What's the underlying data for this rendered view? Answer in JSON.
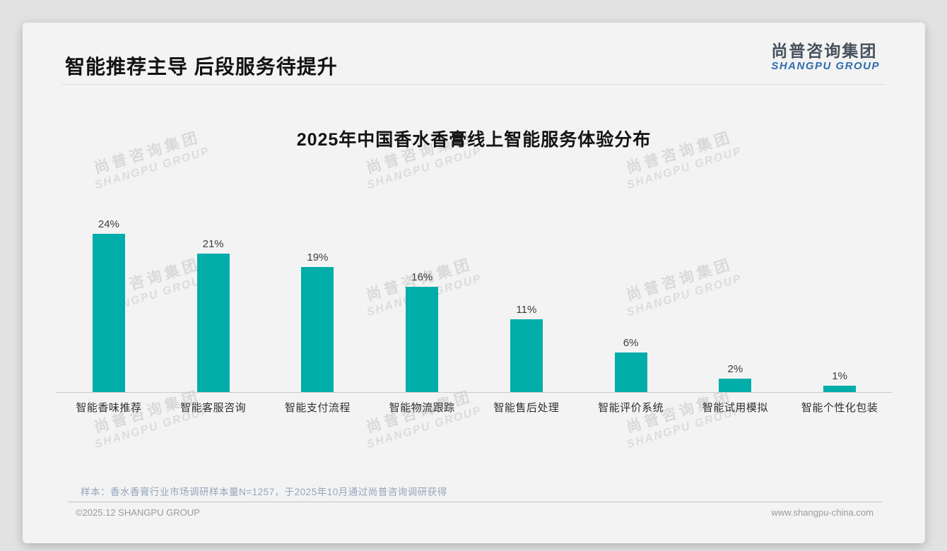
{
  "page": {
    "title": "智能推荐主导 后段服务待提升",
    "logo": {
      "cn": "尚普咨询集团",
      "en": "SHANGPU GROUP"
    },
    "watermark": {
      "cn": "尚普咨询集团",
      "en": "SHANGPU GROUP"
    },
    "footnote": "样本：香水香膏行业市场调研样本量N=1257，于2025年10月通过尚普咨询调研获得",
    "footer": {
      "left": "©2025.12 SHANGPU GROUP",
      "right": "www.shangpu-china.com"
    }
  },
  "chart_data": {
    "type": "bar",
    "title": "2025年中国香水香膏线上智能服务体验分布",
    "categories": [
      "智能香味推荐",
      "智能客服咨询",
      "智能支付流程",
      "智能物流跟踪",
      "智能售后处理",
      "智能评价系统",
      "智能试用模拟",
      "智能个性化包装"
    ],
    "values": [
      24,
      21,
      19,
      16,
      11,
      6,
      2,
      1
    ],
    "value_labels": [
      "24%",
      "21%",
      "19%",
      "16%",
      "11%",
      "6%",
      "2%",
      "1%"
    ],
    "unit": "%",
    "bar_color": "#00ADA9",
    "ylim": [
      0,
      26
    ],
    "xlabel": "",
    "ylabel": "",
    "grid": false,
    "legend": false
  }
}
